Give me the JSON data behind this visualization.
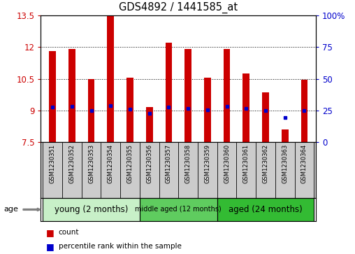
{
  "title": "GDS4892 / 1441585_at",
  "samples": [
    "GSM1230351",
    "GSM1230352",
    "GSM1230353",
    "GSM1230354",
    "GSM1230355",
    "GSM1230356",
    "GSM1230357",
    "GSM1230358",
    "GSM1230359",
    "GSM1230360",
    "GSM1230361",
    "GSM1230362",
    "GSM1230363",
    "GSM1230364"
  ],
  "bar_tops": [
    11.8,
    11.9,
    10.48,
    13.5,
    10.55,
    9.15,
    12.2,
    11.9,
    10.55,
    11.9,
    10.75,
    9.85,
    8.1,
    10.45
  ],
  "bar_bottoms": [
    7.5,
    7.5,
    7.5,
    7.5,
    7.5,
    7.5,
    7.5,
    7.5,
    7.5,
    7.5,
    7.5,
    7.5,
    7.5,
    7.5
  ],
  "blue_dots": [
    9.15,
    9.18,
    9.0,
    9.22,
    9.07,
    8.85,
    9.15,
    9.08,
    9.02,
    9.18,
    9.1,
    9.0,
    8.68,
    9.0
  ],
  "ylim": [
    7.5,
    13.5
  ],
  "y2lim": [
    0,
    100
  ],
  "yticks": [
    7.5,
    9.0,
    10.5,
    12.0,
    13.5
  ],
  "y2ticks": [
    0,
    25,
    50,
    75,
    100
  ],
  "ytick_labels": [
    "7.5",
    "9",
    "10.5",
    "12",
    "13.5"
  ],
  "y2tick_labels": [
    "0",
    "25",
    "50",
    "75",
    "100%"
  ],
  "bar_color": "#cc0000",
  "dot_color": "#0000cc",
  "groups": [
    {
      "label": "young (2 months)",
      "start": 0,
      "end": 5
    },
    {
      "label": "middle aged (12 months)",
      "start": 5,
      "end": 9
    },
    {
      "label": "aged (24 months)",
      "start": 9,
      "end": 14
    }
  ],
  "group_colors": [
    "#c8f0c8",
    "#5fcc5f",
    "#33bb33"
  ],
  "age_label": "age",
  "legend_count_label": "count",
  "legend_pct_label": "percentile rank within the sample",
  "bar_width": 0.35,
  "tick_label_color_left": "#cc0000",
  "tick_label_color_right": "#0000cc",
  "bg_color": "#ffffff",
  "label_area_color": "#cccccc"
}
